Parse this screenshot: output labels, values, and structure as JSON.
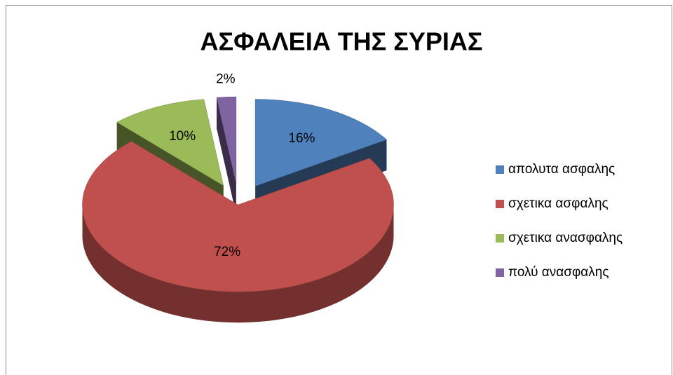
{
  "chart_data": {
    "type": "pie",
    "title": "ΑΣΦΑΛΕΙΑ ΤΗΣ ΣΥΡΙΑΣ",
    "categories": [
      "απολυτα ασφαλης",
      "σχετικα ασφαλης",
      "σχετικα ανασφαλης",
      "πολύ ανασφαλης"
    ],
    "values": [
      16,
      72,
      10,
      2
    ],
    "value_labels": [
      "16%",
      "72%",
      "10%",
      "2%"
    ],
    "colors": [
      "#4f81bd",
      "#c0504d",
      "#9bbb59",
      "#8064a2"
    ],
    "legend": "right"
  }
}
